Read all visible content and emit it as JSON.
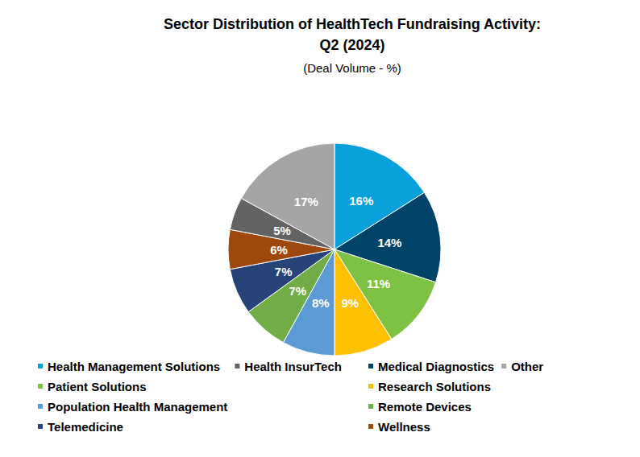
{
  "chart_data": {
    "type": "pie",
    "title": "Sector Distribution of HealthTech Fundraising Activity:\nQ2 (2024)",
    "subtitle": "(Deal Volume - %)",
    "categories": [
      "Health Management Solutions",
      "Medical Diagnostics",
      "Patient Solutions",
      "Research Solutions",
      "Population Health Management",
      "Remote Devices",
      "Telemedicine",
      "Wellness",
      "Health InsurTech",
      "Other"
    ],
    "values": [
      16,
      14,
      11,
      9,
      8,
      7,
      7,
      6,
      5,
      17
    ],
    "value_labels": [
      "16%",
      "14%",
      "11%",
      "9%",
      "8%",
      "7%",
      "7%",
      "6%",
      "5%",
      "17%"
    ],
    "colors": [
      "#0aa0dc",
      "#004369",
      "#7dc242",
      "#ffc000",
      "#5b9bd5",
      "#70ad47",
      "#264478",
      "#9e480e",
      "#636363",
      "#a5a5a5"
    ],
    "data_labels": true,
    "legend": "bottom"
  }
}
